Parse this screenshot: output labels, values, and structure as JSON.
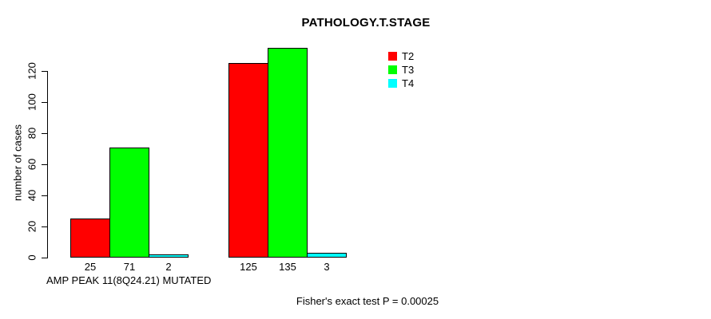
{
  "chart_data": {
    "type": "bar",
    "title": "PATHOLOGY.T.STAGE",
    "ylabel": "number of cases",
    "xlabel": "AMP PEAK 11(8Q24.21) MUTATED",
    "annotation": "Fisher's exact test P = 0.00025",
    "ylim": [
      0,
      135
    ],
    "yticks": [
      0,
      20,
      40,
      60,
      80,
      100,
      120
    ],
    "grid": false,
    "legend_position": "top-right",
    "group_count": 2,
    "series": [
      {
        "name": "T2",
        "color": "#ff0000",
        "values": [
          25,
          125
        ]
      },
      {
        "name": "T3",
        "color": "#00ff00",
        "values": [
          71,
          135
        ]
      },
      {
        "name": "T4",
        "color": "#00ffff",
        "values": [
          2,
          3
        ]
      }
    ],
    "bar_value_labels": [
      [
        25,
        71,
        2
      ],
      [
        125,
        135,
        3
      ]
    ]
  },
  "colors": {
    "background": "#ffffff",
    "bar_border": "#000000",
    "axis": "#000000",
    "text": "#000000"
  }
}
